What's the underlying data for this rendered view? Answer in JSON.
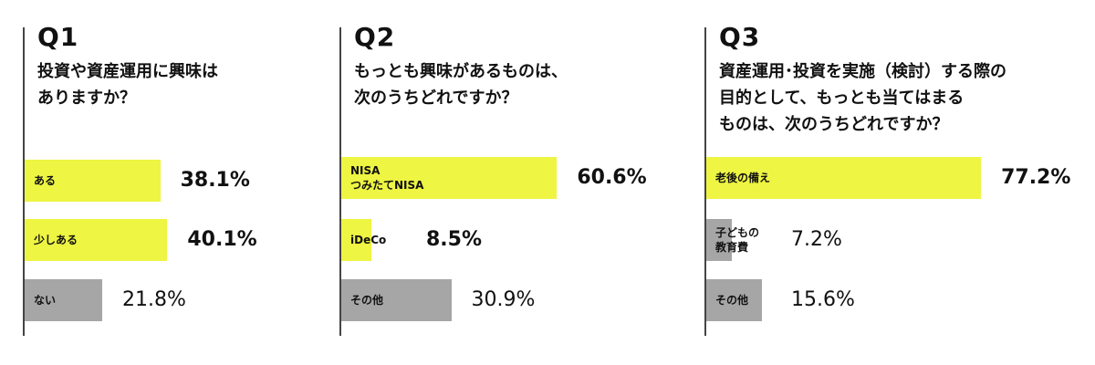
{
  "colors": {
    "highlight": "#eef542",
    "muted": "#a6a6a6",
    "axis": "#444444"
  },
  "chart_data": [
    {
      "type": "bar",
      "orientation": "horizontal",
      "title": "Q1",
      "question": "投資や資産運用に興味は\nありますか？",
      "categories": [
        "ある",
        "少しある",
        "ない"
      ],
      "values": [
        38.1,
        40.1,
        21.8
      ],
      "value_labels": [
        "38.1%",
        "40.1%",
        "21.8%"
      ],
      "highlight": [
        true,
        true,
        false
      ],
      "xlim": [
        0,
        100
      ]
    },
    {
      "type": "bar",
      "orientation": "horizontal",
      "title": "Q2",
      "question": "もっとも興味があるものは、\n次のうちどれですか？",
      "categories": [
        "NISA\nつみたてNISA",
        "iDeCo",
        "その他"
      ],
      "values": [
        60.6,
        8.5,
        30.9
      ],
      "value_labels": [
        "60.6%",
        "8.5%",
        "30.9%"
      ],
      "highlight": [
        true,
        true,
        false
      ],
      "xlim": [
        0,
        100
      ]
    },
    {
      "type": "bar",
      "orientation": "horizontal",
      "title": "Q3",
      "question": "資産運用･投資を実施（検討）する際の\n目的として、もっとも当てはまる\nものは、次のうちどれですか？",
      "categories": [
        "老後の備え",
        "子どもの\n教育費",
        "その他"
      ],
      "values": [
        77.2,
        7.2,
        15.6
      ],
      "value_labels": [
        "77.2%",
        "7.2%",
        "15.6%"
      ],
      "highlight": [
        true,
        false,
        false
      ],
      "xlim": [
        0,
        100
      ]
    }
  ]
}
